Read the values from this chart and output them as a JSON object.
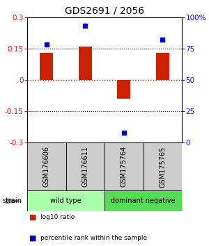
{
  "title": "GDS2691 / 2056",
  "samples": [
    "GSM176606",
    "GSM176611",
    "GSM175764",
    "GSM175765"
  ],
  "log10_ratios": [
    0.13,
    0.16,
    -0.09,
    0.13
  ],
  "percentile_ranks": [
    78,
    93,
    8,
    82
  ],
  "ylim_left": [
    -0.3,
    0.3
  ],
  "ylim_right": [
    0,
    100
  ],
  "yticks_left": [
    -0.3,
    -0.15,
    0,
    0.15,
    0.3
  ],
  "yticks_right": [
    0,
    25,
    50,
    75,
    100
  ],
  "ytick_labels_right": [
    "0",
    "25",
    "50",
    "75",
    "100%"
  ],
  "bar_color": "#cc2200",
  "dot_color": "#0000cc",
  "bar_width": 0.35,
  "groups": [
    {
      "label": "wild type",
      "samples": [
        0,
        1
      ],
      "color": "#aaffaa"
    },
    {
      "label": "dominant negative",
      "samples": [
        2,
        3
      ],
      "color": "#55dd55"
    }
  ],
  "group_row_color": "#cccccc",
  "legend_bar_label": "log10 ratio",
  "legend_dot_label": "percentile rank within the sample",
  "strain_label": "strain",
  "background_color": "#ffffff",
  "title_fontsize": 10,
  "tick_fontsize": 7.5,
  "sample_fontsize": 7,
  "group_fontsize": 7
}
